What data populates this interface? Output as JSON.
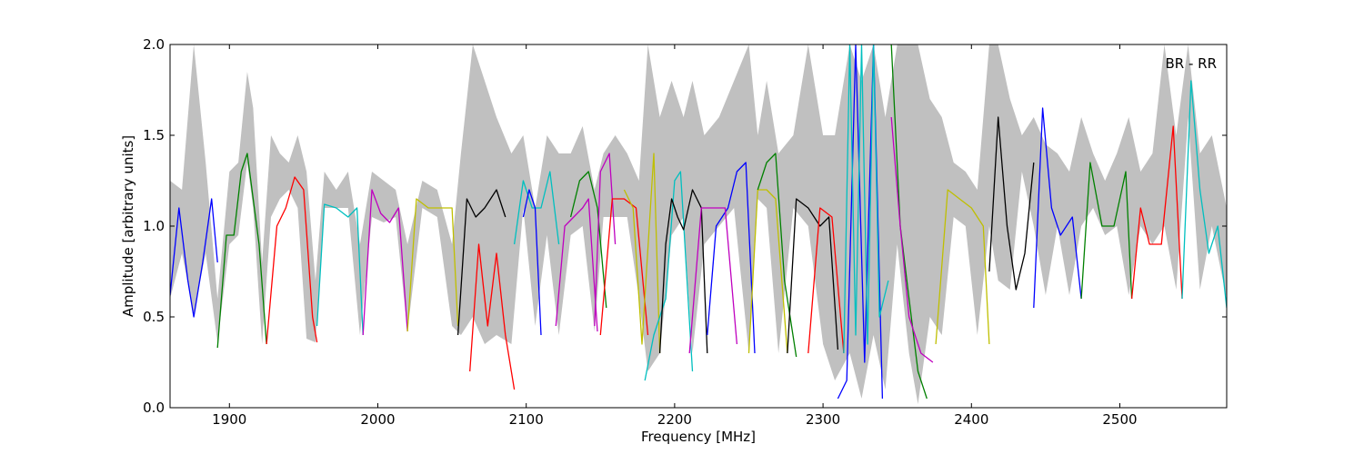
{
  "chart_data": {
    "type": "line",
    "xlabel": "Frequency [MHz]",
    "ylabel": "Amplitude [arbitrary units]",
    "annotation": "BR - RR",
    "xlim": [
      1860,
      2572
    ],
    "ylim": [
      0.0,
      2.0
    ],
    "xticks": [
      1900,
      2000,
      2100,
      2200,
      2300,
      2400,
      2500
    ],
    "yticks": [
      0.0,
      0.5,
      1.0,
      1.5,
      2.0
    ],
    "xtick_labels": [
      "1900",
      "2000",
      "2100",
      "2200",
      "2300",
      "2400",
      "2500"
    ],
    "ytick_labels": [
      "0.0",
      "0.5",
      "1.0",
      "1.5",
      "2.0"
    ],
    "grid": false,
    "legend": "none",
    "colors": {
      "envelope": "#c0c0c0",
      "b": "#0000ff",
      "g": "#008000",
      "r": "#ff0000",
      "c": "#00bfbf",
      "m": "#bf00bf",
      "y": "#bfbf00",
      "k": "#000000"
    },
    "envelope": {
      "x": [
        1860,
        1868,
        1876,
        1884,
        1892,
        1900,
        1906,
        1912,
        1916,
        1922,
        1928,
        1934,
        1940,
        1946,
        1952,
        1958,
        1964,
        1972,
        1980,
        1988,
        1996,
        2004,
        2012,
        2020,
        2030,
        2040,
        2050,
        2056,
        2064,
        2072,
        2080,
        2090,
        2098,
        2106,
        2114,
        2122,
        2130,
        2138,
        2146,
        2152,
        2160,
        2168,
        2176,
        2182,
        2190,
        2198,
        2206,
        2212,
        2220,
        2230,
        2240,
        2250,
        2256,
        2262,
        2270,
        2280,
        2290,
        2300,
        2308,
        2318,
        2326,
        2334,
        2342,
        2350,
        2358,
        2364,
        2372,
        2380,
        2388,
        2396,
        2404,
        2412,
        2418,
        2426,
        2434,
        2442,
        2450,
        2458,
        2466,
        2474,
        2482,
        2490,
        2498,
        2506,
        2514,
        2522,
        2530,
        2538,
        2546,
        2554,
        2562,
        2572
      ],
      "lower": [
        0.6,
        0.85,
        0.52,
        0.85,
        0.36,
        0.9,
        0.95,
        1.35,
        1.1,
        0.35,
        1.05,
        1.15,
        1.2,
        1.1,
        0.38,
        0.36,
        1.1,
        1.1,
        1.1,
        0.4,
        1.05,
        1.02,
        1.05,
        0.42,
        1.1,
        1.05,
        0.45,
        0.4,
        0.5,
        0.35,
        0.4,
        0.35,
        1.1,
        0.45,
        0.95,
        0.4,
        0.95,
        1.0,
        0.42,
        1.05,
        1.05,
        1.05,
        0.6,
        0.2,
        0.3,
        0.95,
        1.05,
        0.3,
        0.9,
        1.0,
        1.1,
        0.3,
        1.15,
        1.1,
        0.3,
        1.1,
        1.0,
        0.35,
        0.15,
        0.3,
        0.05,
        0.4,
        0.1,
        0.9,
        0.3,
        0.02,
        0.5,
        0.4,
        1.05,
        1.0,
        0.4,
        1.0,
        0.7,
        0.65,
        1.3,
        1.0,
        0.62,
        1.0,
        0.62,
        1.0,
        1.1,
        0.95,
        1.0,
        0.62,
        1.0,
        0.9,
        1.0,
        0.65,
        1.6,
        0.65,
        1.0,
        0.6
      ],
      "upper": [
        1.25,
        1.2,
        2.0,
        1.35,
        0.6,
        1.3,
        1.35,
        1.85,
        1.65,
        0.8,
        1.5,
        1.4,
        1.35,
        1.5,
        1.3,
        0.7,
        1.3,
        1.2,
        1.3,
        0.9,
        1.3,
        1.25,
        1.2,
        0.9,
        1.25,
        1.2,
        0.9,
        1.4,
        2.0,
        1.8,
        1.6,
        1.4,
        1.5,
        1.1,
        1.5,
        1.4,
        1.4,
        1.55,
        1.2,
        1.4,
        1.5,
        1.4,
        1.25,
        2.0,
        1.6,
        1.8,
        1.6,
        1.8,
        1.5,
        1.6,
        1.8,
        2.0,
        1.5,
        1.8,
        1.4,
        1.5,
        2.0,
        1.5,
        1.5,
        2.0,
        1.8,
        2.0,
        1.6,
        2.0,
        2.0,
        2.0,
        1.7,
        1.6,
        1.35,
        1.3,
        1.2,
        2.0,
        2.0,
        1.7,
        1.5,
        1.6,
        1.45,
        1.4,
        1.3,
        1.6,
        1.4,
        1.25,
        1.4,
        1.6,
        1.3,
        1.4,
        2.0,
        1.5,
        2.0,
        1.4,
        1.5,
        1.1
      ]
    },
    "series": [
      {
        "color": "b",
        "x": [
          1860,
          1866,
          1872,
          1876,
          1882,
          1888,
          1892
        ],
        "y": [
          0.62,
          1.1,
          0.7,
          0.5,
          0.8,
          1.15,
          0.8
        ]
      },
      {
        "color": "g",
        "x": [
          1892,
          1898,
          1903,
          1908,
          1912,
          1916,
          1920,
          1925
        ],
        "y": [
          0.33,
          0.95,
          0.95,
          1.3,
          1.4,
          1.15,
          0.9,
          0.35
        ]
      },
      {
        "color": "r",
        "x": [
          1925,
          1932,
          1938,
          1944,
          1950,
          1956,
          1959
        ],
        "y": [
          0.35,
          1.0,
          1.1,
          1.27,
          1.2,
          0.5,
          0.36
        ]
      },
      {
        "color": "c",
        "x": [
          1959,
          1964,
          1972,
          1980,
          1986,
          1990
        ],
        "y": [
          0.45,
          1.12,
          1.1,
          1.05,
          1.1,
          0.4
        ]
      },
      {
        "color": "m",
        "x": [
          1990,
          1996,
          2002,
          2008,
          2014,
          2020
        ],
        "y": [
          0.4,
          1.2,
          1.07,
          1.02,
          1.1,
          0.42
        ]
      },
      {
        "color": "y",
        "x": [
          2020,
          2026,
          2034,
          2042,
          2050,
          2054
        ],
        "y": [
          0.42,
          1.15,
          1.1,
          1.1,
          1.1,
          0.45
        ]
      },
      {
        "color": "k",
        "x": [
          2054,
          2060,
          2066,
          2072,
          2080,
          2086
        ],
        "y": [
          0.4,
          1.15,
          1.05,
          1.1,
          1.2,
          1.05
        ]
      },
      {
        "color": "r",
        "x": [
          2062,
          2068,
          2074,
          2080,
          2086,
          2092
        ],
        "y": [
          0.2,
          0.9,
          0.45,
          0.85,
          0.4,
          0.1
        ]
      },
      {
        "color": "c",
        "x": [
          2092,
          2098,
          2104,
          2110,
          2116,
          2122
        ],
        "y": [
          0.9,
          1.25,
          1.1,
          1.1,
          1.3,
          0.9
        ]
      },
      {
        "color": "b",
        "x": [
          2098,
          2102,
          2106,
          2110
        ],
        "y": [
          1.05,
          1.2,
          1.1,
          0.4
        ]
      },
      {
        "color": "m",
        "x": [
          2120,
          2126,
          2132,
          2138,
          2142,
          2148
        ],
        "y": [
          0.45,
          1.0,
          1.05,
          1.1,
          1.15,
          0.42
        ]
      },
      {
        "color": "g",
        "x": [
          2130,
          2136,
          2142,
          2148,
          2154
        ],
        "y": [
          1.05,
          1.25,
          1.3,
          1.1,
          0.55
        ]
      },
      {
        "color": "m",
        "x": [
          2146,
          2150,
          2156,
          2160
        ],
        "y": [
          0.45,
          1.3,
          1.4,
          0.9
        ]
      },
      {
        "color": "r",
        "x": [
          2150,
          2158,
          2166,
          2174,
          2182
        ],
        "y": [
          0.4,
          1.15,
          1.15,
          1.1,
          0.4
        ]
      },
      {
        "color": "y",
        "x": [
          2166,
          2172,
          2178,
          2186,
          2190
        ],
        "y": [
          1.2,
          1.1,
          0.35,
          1.4,
          0.3
        ]
      },
      {
        "color": "c",
        "x": [
          2180,
          2186,
          2194,
          2200,
          2204,
          2212
        ],
        "y": [
          0.15,
          0.4,
          0.6,
          1.25,
          1.3,
          0.2
        ]
      },
      {
        "color": "k",
        "x": [
          2190,
          2194,
          2198,
          2202,
          2206,
          2212,
          2218,
          2222
        ],
        "y": [
          0.3,
          0.9,
          1.15,
          1.05,
          0.98,
          1.2,
          1.1,
          0.3
        ]
      },
      {
        "color": "b",
        "x": [
          2222,
          2228,
          2236,
          2242,
          2248,
          2254
        ],
        "y": [
          0.4,
          1.0,
          1.1,
          1.3,
          1.35,
          0.3
        ]
      },
      {
        "color": "m",
        "x": [
          2210,
          2218,
          2226,
          2234,
          2242
        ],
        "y": [
          0.3,
          1.1,
          1.1,
          1.1,
          0.35
        ]
      },
      {
        "color": "y",
        "x": [
          2250,
          2256,
          2262,
          2268,
          2276
        ],
        "y": [
          0.3,
          1.2,
          1.2,
          1.15,
          0.3
        ]
      },
      {
        "color": "g",
        "x": [
          2256,
          2262,
          2268,
          2274,
          2282
        ],
        "y": [
          1.2,
          1.35,
          1.4,
          0.7,
          0.28
        ]
      },
      {
        "color": "k",
        "x": [
          2276,
          2282,
          2290,
          2298,
          2304,
          2310
        ],
        "y": [
          0.3,
          1.15,
          1.1,
          1.0,
          1.05,
          0.32
        ]
      },
      {
        "color": "r",
        "x": [
          2290,
          2298,
          2306,
          2314
        ],
        "y": [
          0.3,
          1.1,
          1.05,
          0.3
        ]
      },
      {
        "color": "b",
        "x": [
          2310,
          2316,
          2322,
          2328,
          2334,
          2340
        ],
        "y": [
          0.05,
          0.15,
          2.0,
          0.25,
          2.0,
          0.05
        ]
      },
      {
        "color": "c",
        "x": [
          2314,
          2318,
          2322,
          2326,
          2330,
          2334,
          2338,
          2344
        ],
        "y": [
          0.3,
          2.0,
          0.4,
          2.0,
          0.35,
          2.0,
          0.5,
          0.7
        ]
      },
      {
        "color": "g",
        "x": [
          2346,
          2352,
          2358,
          2364,
          2370
        ],
        "y": [
          2.0,
          1.0,
          0.6,
          0.2,
          0.05
        ]
      },
      {
        "color": "m",
        "x": [
          2346,
          2352,
          2358,
          2366,
          2374
        ],
        "y": [
          1.6,
          1.0,
          0.5,
          0.3,
          0.25
        ]
      },
      {
        "color": "y",
        "x": [
          2376,
          2384,
          2392,
          2400,
          2408,
          2412
        ],
        "y": [
          0.35,
          1.2,
          1.15,
          1.1,
          1.0,
          0.35
        ]
      },
      {
        "color": "k",
        "x": [
          2412,
          2418,
          2424,
          2430,
          2436,
          2442
        ],
        "y": [
          0.75,
          1.6,
          1.0,
          0.65,
          0.85,
          1.35
        ]
      },
      {
        "color": "b",
        "x": [
          2442,
          2448,
          2454,
          2460,
          2468,
          2474
        ],
        "y": [
          0.55,
          1.65,
          1.1,
          0.95,
          1.05,
          0.6
        ]
      },
      {
        "color": "g",
        "x": [
          2474,
          2480,
          2488,
          2496,
          2504,
          2508
        ],
        "y": [
          0.6,
          1.35,
          1.0,
          1.0,
          1.3,
          0.6
        ]
      },
      {
        "color": "r",
        "x": [
          2508,
          2514,
          2520,
          2528,
          2536,
          2542
        ],
        "y": [
          0.6,
          1.1,
          0.9,
          0.9,
          1.55,
          0.6
        ]
      },
      {
        "color": "c",
        "x": [
          2542,
          2548,
          2554,
          2560,
          2566,
          2572
        ],
        "y": [
          0.6,
          1.8,
          1.2,
          0.85,
          1.0,
          0.55
        ]
      }
    ]
  }
}
